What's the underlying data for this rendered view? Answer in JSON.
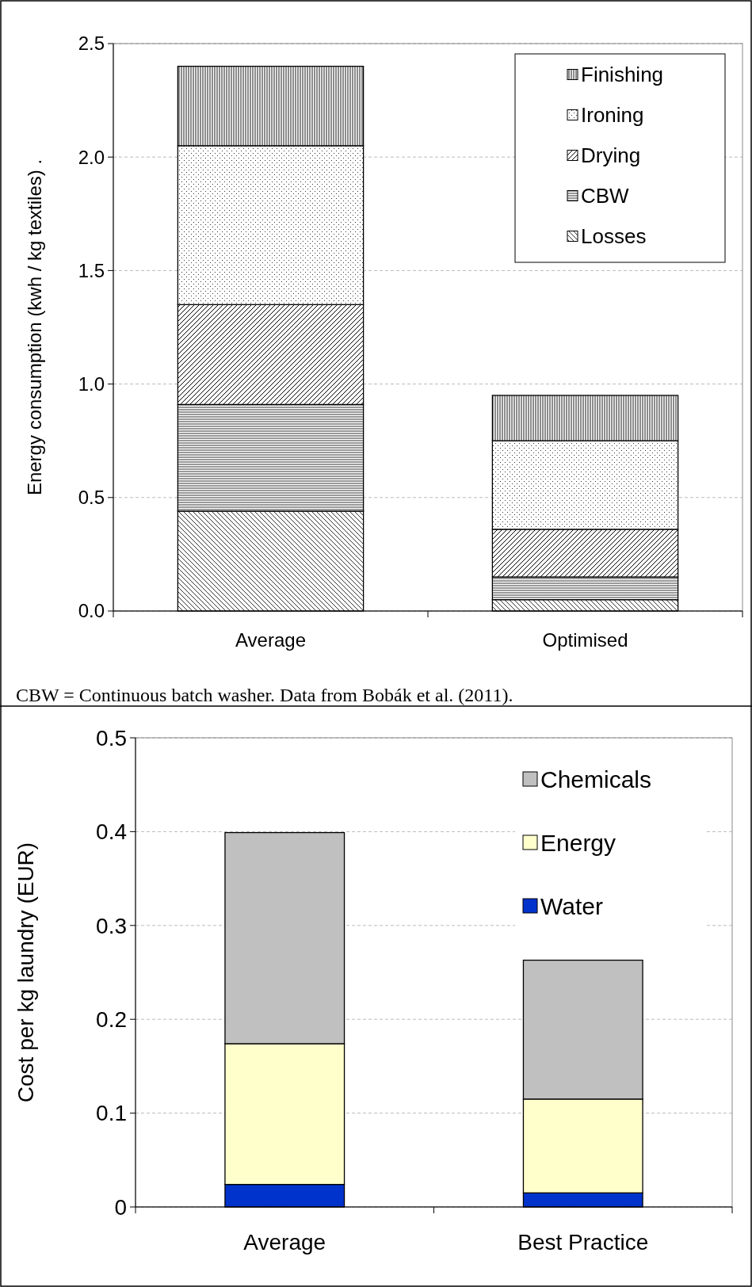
{
  "chart_data": [
    {
      "type": "bar",
      "stacked": true,
      "ylabel": "Energy consumption (kwh / kg textiles) .",
      "categories": [
        "Average",
        "Optimised"
      ],
      "series": [
        {
          "name": "Losses",
          "color": "#000000",
          "values": [
            0.44,
            0.05
          ]
        },
        {
          "name": "CBW",
          "color": "#000000",
          "values": [
            0.47,
            0.1
          ]
        },
        {
          "name": "Drying",
          "color": "#000000",
          "values": [
            0.44,
            0.21
          ]
        },
        {
          "name": "Ironing",
          "color": "#000000",
          "values": [
            0.7,
            0.39
          ]
        },
        {
          "name": "Finishing",
          "color": "#000000",
          "values": [
            0.35,
            0.2
          ]
        }
      ],
      "ylim": [
        0,
        2.5
      ],
      "yticks": [
        {
          "value": 0,
          "label": "0.0"
        },
        {
          "value": 0.5,
          "label": "0.5"
        },
        {
          "value": 1,
          "label": "1.0"
        },
        {
          "value": 1.5,
          "label": "1.5"
        },
        {
          "value": 2,
          "label": "2.0"
        },
        {
          "value": 2.5,
          "label": "2.5"
        }
      ],
      "grid": "y",
      "legend": "top right",
      "annotations": [
        "CBW = Continuous batch washer. Data from Bobák et al. (2011)."
      ]
    },
    {
      "type": "bar",
      "stacked": true,
      "ylabel": "Cost per kg laundry (EUR)",
      "categories": [
        "Average",
        "Best Practice"
      ],
      "series": [
        {
          "name": "Water",
          "color": "#0033cc",
          "values": [
            0.024,
            0.015
          ]
        },
        {
          "name": "Energy",
          "color": "#ffffcc",
          "values": [
            0.15,
            0.1
          ]
        },
        {
          "name": "Chemicals",
          "color": "#c0c0c0",
          "values": [
            0.225,
            0.148
          ]
        }
      ],
      "ylim": [
        0,
        0.5
      ],
      "yticks": [
        0,
        0.1,
        0.2,
        0.3,
        0.4,
        0.5
      ],
      "grid": "y",
      "legend": "top right"
    }
  ]
}
